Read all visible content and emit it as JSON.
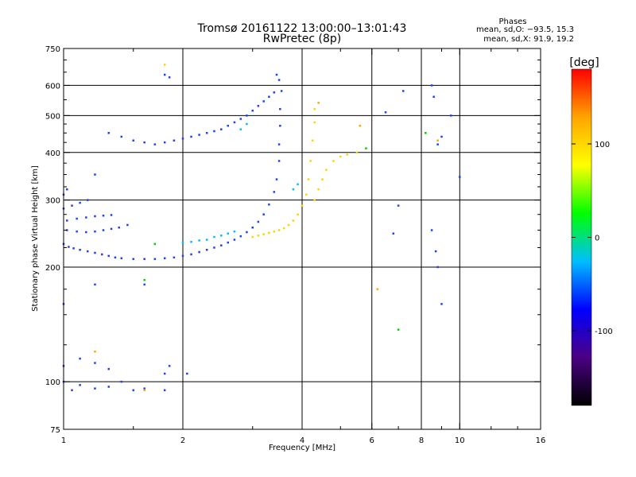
{
  "header": {
    "title_line1": "Tromsø 20161122 13:00:00–13:01:43",
    "title_line2": "RwPretec (8p)",
    "phases_title": "Phases",
    "stats_o": "mean, sd,O: −93.5, 15.3",
    "stats_x": "mean, sd,X:  91.9, 19.2"
  },
  "chart_data": {
    "type": "scatter",
    "xlabel": "Frequency [MHz]",
    "ylabel": "Stationary phase Virtual Height [km]",
    "x_scale": "log",
    "y_scale": "log",
    "xlim": [
      1,
      16
    ],
    "ylim": [
      75,
      750
    ],
    "x_ticks": [
      1,
      2,
      4,
      6,
      8,
      10,
      16
    ],
    "x_minor_ticks": [
      1.5,
      3,
      5,
      7,
      9,
      12,
      14
    ],
    "y_ticks": [
      75,
      100,
      200,
      300,
      400,
      500,
      600,
      750
    ],
    "y_minor_ticks": [
      125,
      150,
      175,
      225,
      250,
      275,
      325,
      350,
      375,
      425,
      450,
      475,
      550,
      650,
      700
    ],
    "grid_x": [
      2,
      4,
      6,
      8,
      10
    ],
    "grid_y": [
      100,
      200,
      300,
      400,
      500,
      600
    ],
    "colorbar": {
      "label": "[deg]",
      "range": [
        -180,
        180
      ],
      "ticks": [
        100,
        0,
        -100
      ],
      "colors": [
        "#000000",
        "#4b0082",
        "#0000ff",
        "#00bfff",
        "#00ff00",
        "#ffff00",
        "#ffa500",
        "#ff0000"
      ]
    },
    "series": [
      {
        "role": "o-mode trace",
        "phase_deg": -100,
        "color": "#1f3fff",
        "points": [
          [
            1.0,
            230
          ],
          [
            1.03,
            226
          ],
          [
            1.06,
            224
          ],
          [
            1.1,
            222
          ],
          [
            1.15,
            220
          ],
          [
            1.2,
            218
          ],
          [
            1.25,
            216
          ],
          [
            1.3,
            214
          ],
          [
            1.35,
            212
          ],
          [
            1.4,
            211
          ],
          [
            1.5,
            210
          ],
          [
            1.6,
            210
          ],
          [
            1.7,
            210
          ],
          [
            1.8,
            211
          ],
          [
            1.9,
            212
          ],
          [
            2.0,
            214
          ],
          [
            2.1,
            216
          ],
          [
            2.2,
            219
          ],
          [
            2.3,
            222
          ],
          [
            2.4,
            225
          ],
          [
            2.5,
            228
          ],
          [
            2.6,
            232
          ],
          [
            2.7,
            236
          ],
          [
            2.8,
            241
          ],
          [
            2.9,
            247
          ],
          [
            3.0,
            254
          ],
          [
            3.1,
            263
          ],
          [
            3.2,
            275
          ],
          [
            3.3,
            292
          ],
          [
            3.4,
            315
          ],
          [
            3.45,
            340
          ],
          [
            3.5,
            380
          ],
          [
            3.5,
            420
          ],
          [
            3.52,
            470
          ],
          [
            3.52,
            520
          ],
          [
            3.55,
            580
          ],
          [
            3.5,
            620
          ],
          [
            3.45,
            640
          ],
          [
            1.02,
            250
          ],
          [
            1.08,
            248
          ],
          [
            1.14,
            247
          ],
          [
            1.2,
            248
          ],
          [
            1.26,
            250
          ],
          [
            1.32,
            252
          ],
          [
            1.38,
            254
          ],
          [
            1.45,
            258
          ],
          [
            1.02,
            265
          ],
          [
            1.08,
            268
          ],
          [
            1.14,
            270
          ],
          [
            1.2,
            272
          ],
          [
            1.26,
            273
          ],
          [
            1.32,
            274
          ],
          [
            1.0,
            285
          ],
          [
            1.05,
            290
          ],
          [
            1.1,
            295
          ],
          [
            1.0,
            310
          ],
          [
            1.02,
            320
          ],
          [
            1.15,
            300
          ],
          [
            1.2,
            350
          ]
        ]
      },
      {
        "role": "upper o-mode trace",
        "phase_deg": -100,
        "color": "#1f3fff",
        "points": [
          [
            1.3,
            450
          ],
          [
            1.4,
            440
          ],
          [
            1.5,
            430
          ],
          [
            1.6,
            425
          ],
          [
            1.7,
            420
          ],
          [
            1.8,
            425
          ],
          [
            1.9,
            430
          ],
          [
            2.0,
            435
          ],
          [
            2.1,
            440
          ],
          [
            2.2,
            445
          ],
          [
            2.3,
            450
          ],
          [
            2.4,
            455
          ],
          [
            2.5,
            460
          ],
          [
            2.6,
            470
          ],
          [
            2.7,
            480
          ],
          [
            2.8,
            490
          ],
          [
            2.9,
            500
          ],
          [
            3.0,
            515
          ],
          [
            3.1,
            530
          ],
          [
            3.2,
            545
          ],
          [
            3.3,
            560
          ],
          [
            3.4,
            575
          ],
          [
            1.8,
            640
          ],
          [
            1.85,
            630
          ]
        ]
      },
      {
        "role": "cyan segment",
        "phase_deg": -40,
        "color": "#00bfff",
        "points": [
          [
            2.0,
            232
          ],
          [
            2.1,
            233
          ],
          [
            2.2,
            235
          ],
          [
            2.3,
            236
          ],
          [
            2.4,
            240
          ],
          [
            2.5,
            242
          ],
          [
            2.6,
            245
          ],
          [
            2.7,
            248
          ],
          [
            2.8,
            460
          ],
          [
            2.9,
            475
          ],
          [
            3.8,
            320
          ],
          [
            3.9,
            330
          ]
        ]
      },
      {
        "role": "x-mode trace",
        "phase_deg": 100,
        "color": "#ffd200",
        "points": [
          [
            3.0,
            240
          ],
          [
            3.1,
            242
          ],
          [
            3.2,
            244
          ],
          [
            3.3,
            246
          ],
          [
            3.4,
            248
          ],
          [
            3.5,
            250
          ],
          [
            3.6,
            253
          ],
          [
            3.7,
            258
          ],
          [
            3.8,
            265
          ],
          [
            3.9,
            275
          ],
          [
            4.0,
            290
          ],
          [
            4.1,
            310
          ],
          [
            4.15,
            340
          ],
          [
            4.2,
            380
          ],
          [
            4.25,
            430
          ],
          [
            4.3,
            480
          ],
          [
            4.3,
            520
          ],
          [
            4.3,
            300
          ],
          [
            4.4,
            320
          ],
          [
            4.5,
            340
          ],
          [
            4.6,
            360
          ],
          [
            4.8,
            380
          ],
          [
            5.0,
            390
          ],
          [
            5.2,
            395
          ],
          [
            5.5,
            400
          ],
          [
            1.8,
            680
          ]
        ]
      },
      {
        "role": "sparse echoes",
        "phase_deg": -100,
        "color": "#1f3fff",
        "points": [
          [
            1.0,
            100
          ],
          [
            1.05,
            95
          ],
          [
            1.1,
            98
          ],
          [
            1.2,
            96
          ],
          [
            1.3,
            97
          ],
          [
            1.4,
            100
          ],
          [
            1.5,
            95
          ],
          [
            1.6,
            96
          ],
          [
            1.8,
            95
          ],
          [
            1.0,
            110
          ],
          [
            1.1,
            115
          ],
          [
            1.2,
            112
          ],
          [
            1.3,
            108
          ],
          [
            1.8,
            105
          ],
          [
            1.85,
            110
          ],
          [
            2.05,
            105
          ],
          [
            1.0,
            160
          ],
          [
            1.2,
            180
          ],
          [
            1.6,
            180
          ],
          [
            6.5,
            510
          ],
          [
            7.0,
            290
          ],
          [
            7.2,
            580
          ],
          [
            8.5,
            600
          ],
          [
            8.6,
            560
          ],
          [
            8.8,
            420
          ],
          [
            9.0,
            440
          ],
          [
            8.5,
            250
          ],
          [
            8.7,
            220
          ],
          [
            8.8,
            200
          ],
          [
            9.0,
            160
          ],
          [
            9.5,
            500
          ],
          [
            10.0,
            345
          ],
          [
            6.8,
            245
          ]
        ]
      },
      {
        "role": "green echoes",
        "phase_deg": 0,
        "color": "#00d000",
        "points": [
          [
            1.7,
            230
          ],
          [
            1.6,
            185
          ],
          [
            7.0,
            137
          ],
          [
            8.2,
            450
          ],
          [
            5.8,
            410
          ]
        ]
      },
      {
        "role": "orange echoes",
        "phase_deg": 150,
        "color": "#ffa500",
        "points": [
          [
            1.2,
            120
          ],
          [
            1.6,
            95
          ],
          [
            4.4,
            540
          ],
          [
            5.6,
            470
          ],
          [
            6.2,
            175
          ],
          [
            8.8,
            430
          ]
        ]
      }
    ]
  }
}
